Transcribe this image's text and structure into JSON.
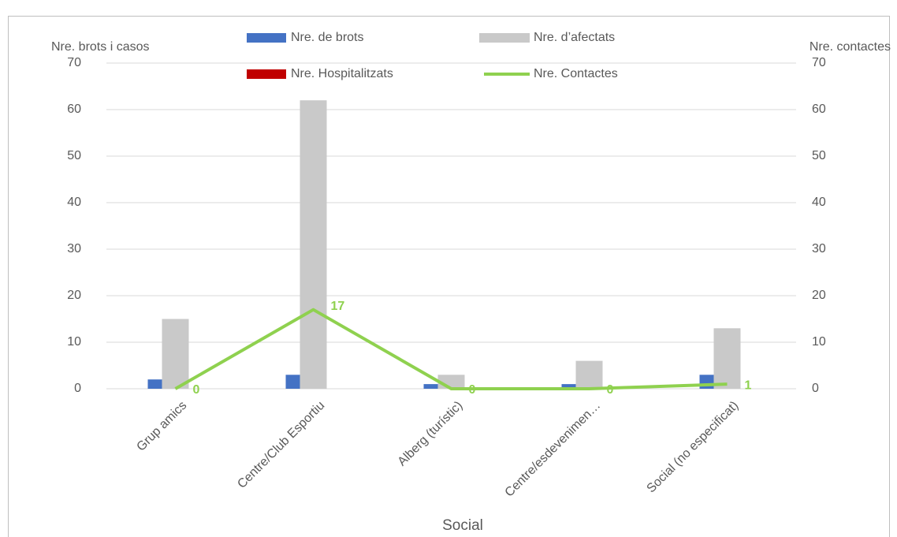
{
  "chart_data": {
    "type": "bar",
    "x_label": "Social",
    "y_label": "Nre. brots i casos",
    "y2_label": "Nre. contactes",
    "categories": [
      "Grup amics",
      "Centre/Club Esportiu",
      "Alberg (turístic)",
      "Centre/esdevenimen…",
      "Social (no especificat)"
    ],
    "series": [
      {
        "name": "Nre. de brots",
        "color": "#4472c4",
        "type": "bar",
        "values": [
          2,
          3,
          1,
          1,
          3
        ]
      },
      {
        "name": "Nre. d’afectats",
        "color": "#c9c9c9",
        "type": "bar",
        "values": [
          15,
          62,
          3,
          6,
          13
        ]
      },
      {
        "name": "Nre. Hospitalitzats",
        "color": "#c00000",
        "type": "bar",
        "values": [
          0,
          0,
          0,
          0,
          0
        ]
      },
      {
        "name": "Nre. Contactes",
        "color": "#8fd14f",
        "type": "line",
        "axis": "y2",
        "values": [
          0,
          17,
          0,
          0,
          1
        ],
        "data_labels": true
      }
    ],
    "ylim": [
      0,
      70
    ],
    "yticks": [
      0,
      10,
      20,
      30,
      40,
      50,
      60,
      70
    ],
    "y2lim": [
      0,
      70
    ],
    "y2ticks": [
      0,
      10,
      20,
      30,
      40,
      50,
      60,
      70
    ],
    "grid": true
  }
}
